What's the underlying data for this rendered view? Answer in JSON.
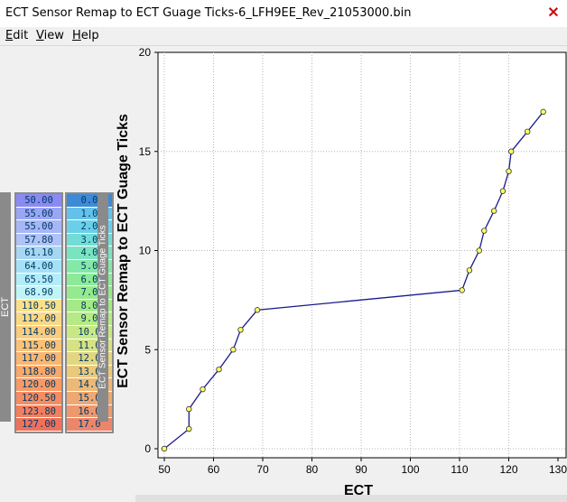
{
  "window": {
    "title": "ECT Sensor Remap to ECT Guage Ticks-6_LFH9EE_Rev_21053000.bin"
  },
  "menu": [
    {
      "label": "Edit"
    },
    {
      "label": "View"
    },
    {
      "label": "Help"
    }
  ],
  "table": {
    "row_header": "ECT",
    "col_header": "ECT Sensor Remap to ECT Guage Ticks",
    "x_values": [
      "50.00",
      "55.00",
      "55.00",
      "57.80",
      "61.10",
      "64.00",
      "65.50",
      "68.90",
      "110.50",
      "112.00",
      "114.00",
      "115.00",
      "117.00",
      "118.80",
      "120.00",
      "120.50",
      "123.80",
      "127.00"
    ],
    "y_values": [
      "0.0",
      "1.0",
      "2.0",
      "3.0",
      "4.0",
      "5.0",
      "6.0",
      "7.0",
      "8.0",
      "9.0",
      "10.0",
      "11.0",
      "12.0",
      "13.0",
      "14.0",
      "15.0",
      "16.0",
      "17.0"
    ]
  },
  "chart_data": {
    "type": "line",
    "xlabel": "ECT",
    "ylabel": "ECT Sensor Remap to ECT Guage Ticks",
    "xlim": [
      48,
      132
    ],
    "ylim": [
      0,
      20
    ],
    "x_ticks": [
      50,
      60,
      70,
      80,
      90,
      100,
      110,
      120,
      130
    ],
    "y_ticks": [
      0,
      5,
      10,
      15,
      20
    ],
    "grid": true,
    "x": [
      50.0,
      55.0,
      55.0,
      57.8,
      61.1,
      64.0,
      65.5,
      68.9,
      110.5,
      112.0,
      114.0,
      115.0,
      117.0,
      118.8,
      120.0,
      120.5,
      123.8,
      127.0
    ],
    "y": [
      0,
      1,
      2,
      3,
      4,
      5,
      6,
      7,
      8,
      9,
      10,
      11,
      12,
      13,
      14,
      15,
      16,
      17
    ],
    "line_color": "#1a1a8c",
    "marker_color": "#ffff66"
  },
  "colors": {
    "heat": [
      "#8a8af2",
      "#9aa6f4",
      "#a6b6f6",
      "#b0c2f6",
      "#a6d6f2",
      "#a6e0f6",
      "#b2ecf8",
      "#c0f4f6",
      "#fbe08a",
      "#fbd884",
      "#fbcc7c",
      "#fbc276",
      "#fbb670",
      "#f9a86a",
      "#f79a66",
      "#f58c62",
      "#f37e5e",
      "#f0705a"
    ],
    "heat2": [
      "#3d8ad6",
      "#64c2ea",
      "#6ad0ea",
      "#72dcd6",
      "#7ae4c0",
      "#84e8a8",
      "#8cea98",
      "#94ea8c",
      "#a4ea86",
      "#b6ea84",
      "#c8e886",
      "#d6e284",
      "#e2d680",
      "#eac87c",
      "#eeb876",
      "#eea872",
      "#ee986e",
      "#ec866a"
    ]
  }
}
